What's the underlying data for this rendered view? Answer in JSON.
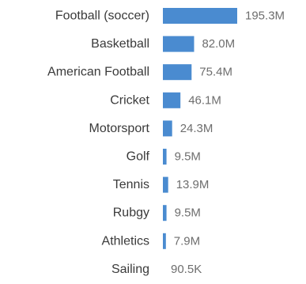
{
  "chart_data": {
    "type": "bar",
    "orientation": "horizontal",
    "title": "",
    "xlabel": "",
    "ylabel": "",
    "categories": [
      "Football (soccer)",
      "Basketball",
      "American Football",
      "Cricket",
      "Motorsport",
      "Golf",
      "Tennis",
      "Rubgy",
      "Athletics",
      "Sailing"
    ],
    "values": [
      195300000,
      82000000,
      75400000,
      46100000,
      24300000,
      9500000,
      13900000,
      9500000,
      7900000,
      90500
    ],
    "value_labels": [
      "195.3M",
      "82.0M",
      "75.4M",
      "46.1M",
      "24.3M",
      "9.5M",
      "13.9M",
      "9.5M",
      "7.9M",
      "90.5K"
    ],
    "xlim": [
      0,
      195300000
    ],
    "grid": false,
    "legend": "none",
    "bar_color": "#4a8bd0"
  }
}
